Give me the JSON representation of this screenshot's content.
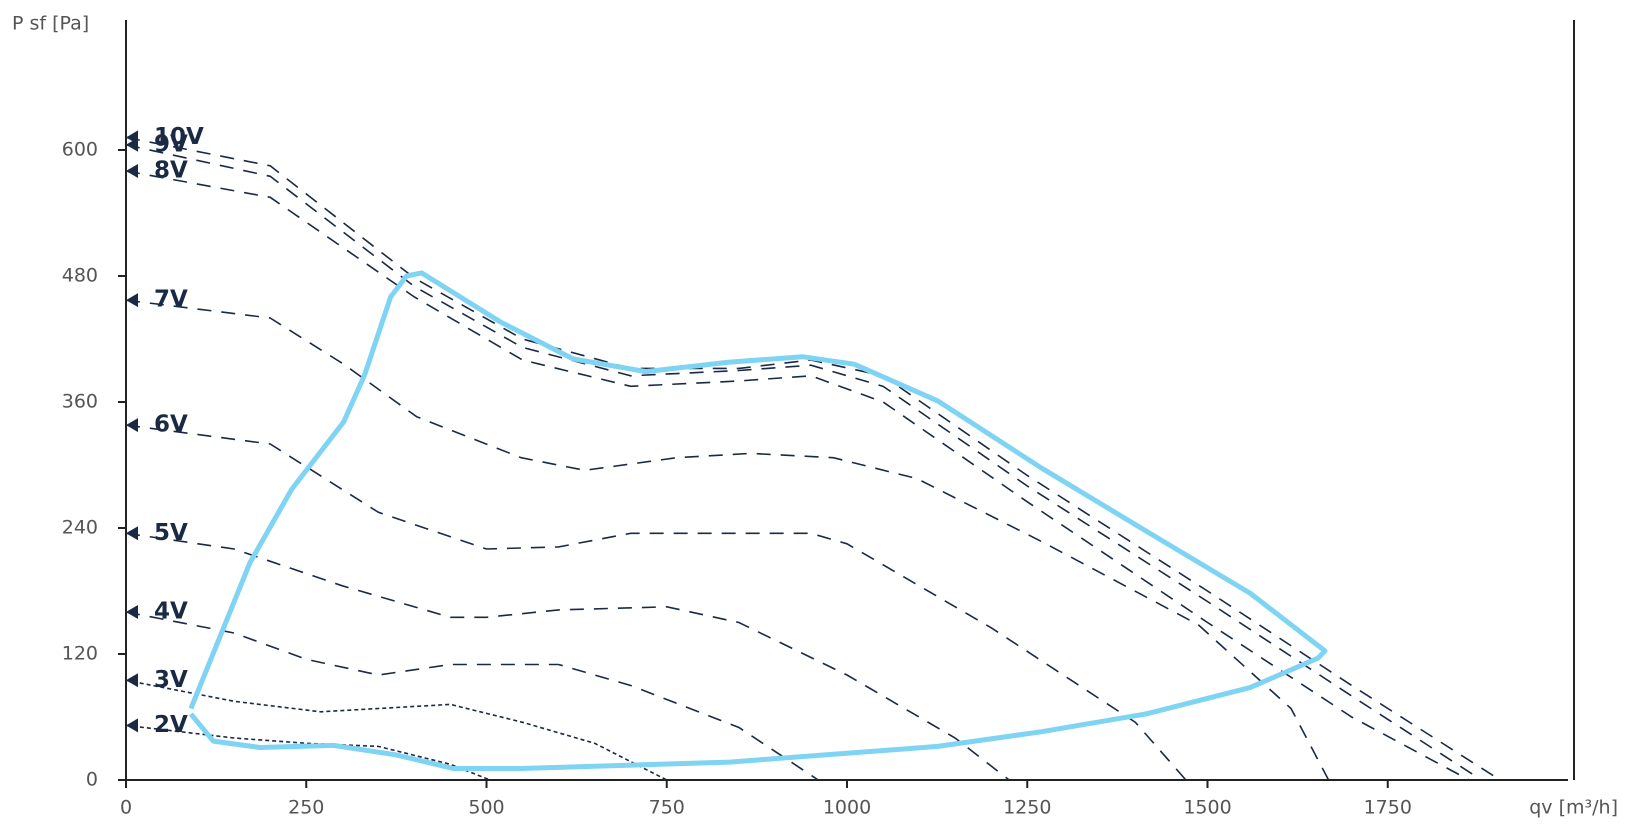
{
  "chart_data": {
    "type": "line",
    "ylabel": "P sf [Pa]",
    "xlabel": "qv [m³/h]",
    "xlim": [
      0,
      2000
    ],
    "ylim": [
      0,
      720
    ],
    "xticks": [
      0,
      250,
      500,
      750,
      1000,
      1250,
      1500,
      1750
    ],
    "yticks": [
      0,
      120,
      240,
      360,
      480,
      600
    ],
    "series": [
      {
        "name": "10V",
        "color": "#1a2a44",
        "dash": "dashed",
        "x": [
          0,
          200,
          400,
          550,
          700,
          850,
          950,
          1050,
          1250,
          1500,
          1700,
          1906
        ],
        "values": [
          612,
          585,
          478,
          420,
          392,
          392,
          400,
          385,
          290,
          180,
          90,
          0
        ]
      },
      {
        "name": "9V",
        "color": "#1a2a44",
        "dash": "dashed",
        "x": [
          0,
          200,
          400,
          550,
          700,
          850,
          950,
          1050,
          1250,
          1500,
          1700,
          1880
        ],
        "values": [
          605,
          575,
          470,
          412,
          385,
          390,
          395,
          375,
          280,
          170,
          80,
          0
        ]
      },
      {
        "name": "8V",
        "color": "#1a2a44",
        "dash": "dashed",
        "x": [
          0,
          200,
          400,
          550,
          700,
          850,
          950,
          1050,
          1250,
          1500,
          1700,
          1863
        ],
        "values": [
          580,
          555,
          460,
          400,
          375,
          380,
          385,
          360,
          265,
          150,
          60,
          0
        ]
      },
      {
        "name": "7V",
        "color": "#1a2a44",
        "dash": "dashed",
        "x": [
          0,
          200,
          302,
          403,
          548,
          636,
          764,
          866,
          981,
          1097,
          1270,
          1487,
          1616,
          1668
        ],
        "values": [
          457,
          440,
          396,
          346,
          307,
          295,
          307,
          311,
          307,
          287,
          227,
          148,
          68,
          0
        ]
      },
      {
        "name": "6V",
        "color": "#1a2a44",
        "dash": "dashed",
        "x": [
          0,
          200,
          350,
          500,
          600,
          700,
          950,
          1000,
          1200,
          1400,
          1470
        ],
        "values": [
          338,
          320,
          255,
          220,
          222,
          235,
          235,
          225,
          145,
          55,
          0
        ]
      },
      {
        "name": "5V",
        "color": "#1a2a44",
        "dash": "dashed",
        "x": [
          0,
          150,
          300,
          450,
          500,
          600,
          750,
          850,
          1000,
          1150,
          1225
        ],
        "values": [
          235,
          220,
          185,
          155,
          155,
          162,
          165,
          150,
          100,
          40,
          0
        ]
      },
      {
        "name": "4V",
        "color": "#1a2a44",
        "dash": "dashed",
        "x": [
          0,
          150,
          250,
          350,
          450,
          600,
          700,
          850,
          960
        ],
        "values": [
          160,
          140,
          115,
          100,
          110,
          110,
          90,
          50,
          0
        ]
      },
      {
        "name": "3V",
        "color": "#1a2a44",
        "dash": "dotted",
        "x": [
          0,
          150,
          270,
          450,
          550,
          650,
          750
        ],
        "values": [
          95,
          75,
          65,
          72,
          55,
          35,
          0
        ]
      },
      {
        "name": "2V",
        "color": "#1a2a44",
        "dash": "dotted",
        "x": [
          0,
          150,
          250,
          350,
          450,
          505
        ],
        "values": [
          52,
          40,
          35,
          32,
          15,
          0
        ]
      }
    ],
    "envelope": {
      "color": "#7fd3f3",
      "x": [
        90,
        121,
        186,
        288,
        374,
        454,
        548,
        837,
        1126,
        1270,
        1415,
        1559,
        1653,
        1663,
        1559,
        1415,
        1270,
        1126,
        1010,
        939,
        837,
        721,
        620,
        520,
        410,
        389,
        367,
        331,
        302,
        230,
        172,
        90
      ],
      "values": [
        63,
        37,
        31,
        33,
        24,
        11,
        11,
        17,
        32,
        46,
        63,
        88,
        116,
        123,
        178,
        237,
        297,
        361,
        396,
        403,
        398,
        389,
        401,
        436,
        483,
        480,
        460,
        386,
        341,
        277,
        207,
        68
      ]
    }
  }
}
